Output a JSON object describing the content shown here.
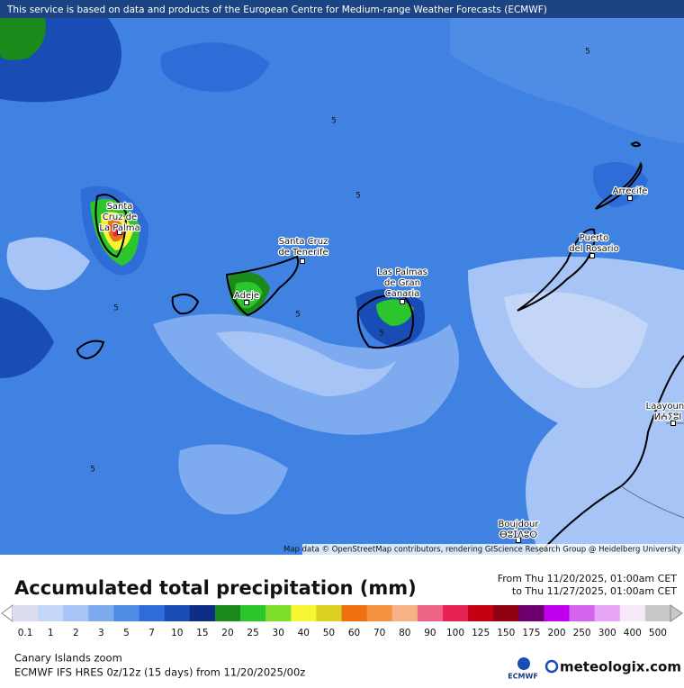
{
  "header": {
    "notice": "This service is based on data and products of the European Centre for Medium-range Weather Forecasts (ECMWF)"
  },
  "map": {
    "places": [
      {
        "lines": [
          "Santa",
          "Cruz de",
          "La Palma"
        ]
      },
      {
        "lines": [
          "Adeje"
        ]
      },
      {
        "lines": [
          "Santa Cruz",
          "de Tenerife"
        ]
      },
      {
        "lines": [
          "Las Palmas",
          "de Gran",
          "Canaria"
        ]
      },
      {
        "lines": [
          "Puerto",
          "del Rosario"
        ]
      },
      {
        "lines": [
          "Arrecife"
        ]
      },
      {
        "lines": [
          "Laayoune",
          "ⵍⵄⵢⵓⵏ"
        ]
      },
      {
        "lines": [
          "Boujdour",
          "ⴱⵓⵊⴷⵓⵔ"
        ]
      }
    ],
    "contour_labels": [
      "5",
      "5",
      "5",
      "5",
      "5",
      "5",
      "5"
    ],
    "attribution": "Map data © OpenStreetMap contributors, rendering GIScience Research Group @ Heidelberg University"
  },
  "legend": {
    "title": "Accumulated total precipitation (mm)",
    "from": "From Thu 11/20/2025, 01:00am CET",
    "to": "to Thu 11/27/2025, 01:00am CET",
    "values": [
      0.1,
      1,
      2,
      3,
      5,
      7,
      10,
      15,
      20,
      25,
      30,
      40,
      50,
      60,
      70,
      80,
      90,
      100,
      125,
      150,
      175,
      200,
      250,
      300,
      400,
      500
    ],
    "colors": [
      "#dcdcf0",
      "#c4d6f8",
      "#a6c4f6",
      "#7eaaf0",
      "#4f8ce6",
      "#2e6cd8",
      "#1a4cb6",
      "#0c2c86",
      "#1a8a1a",
      "#2cc62c",
      "#7ede2a",
      "#f6f632",
      "#dcd020",
      "#ee7010",
      "#f6923e",
      "#f6b286",
      "#ee6486",
      "#e62252",
      "#c40012",
      "#8e0012",
      "#6e0070",
      "#be00ee",
      "#d664ee",
      "#e8a4f6",
      "#f6e8f8",
      "#c8c8c8"
    ]
  },
  "footer": {
    "region": "Canary Islands zoom",
    "model": "ECMWF IFS HRES 0z/12z (15 days) from 11/20/2025/00z",
    "ecmwf_logo": "ECMWF",
    "brand": "meteologix.com"
  }
}
